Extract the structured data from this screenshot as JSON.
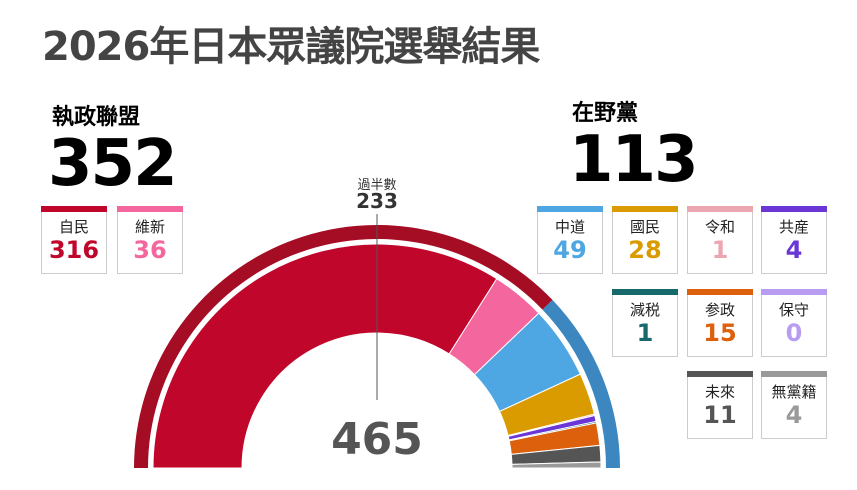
{
  "title": "2026年日本眾議院選舉結果",
  "coalition": {
    "label": "執政聯盟",
    "seats": "352",
    "color": "#c0062a",
    "band_color": "#a50d25"
  },
  "opposition": {
    "label": "在野黨",
    "seats": "113",
    "color": "#3d8ac4",
    "band_color": "#3c87c0"
  },
  "majority": {
    "label": "過半數",
    "value": "233"
  },
  "total": "465",
  "chart_data": {
    "type": "pie",
    "subtype": "semicircle-donut",
    "total": 465,
    "majority": 233,
    "parties": [
      {
        "name": "自民",
        "seats": 316,
        "color": "#c0062a",
        "bloc": "coalition"
      },
      {
        "name": "維新",
        "seats": 36,
        "color": "#f4679e",
        "bloc": "coalition"
      },
      {
        "name": "中道",
        "seats": 49,
        "color": "#4ea6e2",
        "bloc": "opposition"
      },
      {
        "name": "國民",
        "seats": 28,
        "color": "#d99b00",
        "bloc": "opposition"
      },
      {
        "name": "令和",
        "seats": 1,
        "color": "#eba6b2",
        "bloc": "opposition"
      },
      {
        "name": "共産",
        "seats": 4,
        "color": "#6a36d6",
        "bloc": "opposition"
      },
      {
        "name": "減税",
        "seats": 1,
        "color": "#17696b",
        "bloc": "opposition"
      },
      {
        "name": "参政",
        "seats": 15,
        "color": "#dd600c",
        "bloc": "opposition"
      },
      {
        "name": "保守",
        "seats": 0,
        "color": "#b79cf0",
        "bloc": "opposition"
      },
      {
        "name": "未來",
        "seats": 11,
        "color": "#555555",
        "bloc": "opposition"
      },
      {
        "name": "無黨籍",
        "seats": 4,
        "color": "#9a9a9a",
        "bloc": "opposition"
      }
    ]
  }
}
